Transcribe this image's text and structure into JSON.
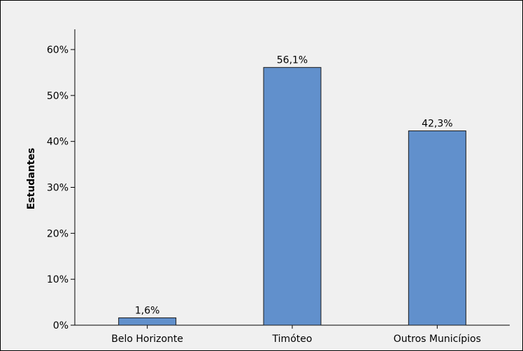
{
  "chart_data": {
    "type": "bar",
    "title": "",
    "xlabel": "",
    "ylabel": "Estudantes",
    "categories": [
      "Belo Horizonte",
      "Timóteo",
      "Outros Municípios"
    ],
    "values": [
      1.6,
      56.1,
      42.3
    ],
    "data_labels": [
      "1,6%",
      "56,1%",
      "42,3%"
    ],
    "ylim": [
      0,
      60
    ],
    "yticks": [
      0,
      10,
      20,
      30,
      40,
      50,
      60
    ],
    "ytick_labels": [
      "0%",
      "10%",
      "20%",
      "30%",
      "40%",
      "50%",
      "60%"
    ],
    "grid": false,
    "legend": "none",
    "colors": {
      "bar_fill": "#6190cc",
      "bar_stroke": "#1a1a1a",
      "plot_background": "#f0f0f0",
      "frame": "#000000"
    }
  }
}
